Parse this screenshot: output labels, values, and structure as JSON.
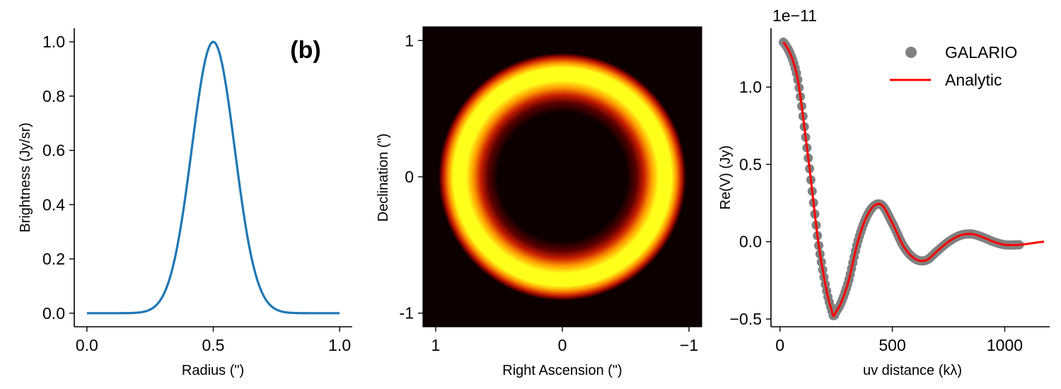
{
  "panel_tag": "(b)",
  "colors": {
    "profile_line": "#1f77b4",
    "galario_points": "#808080",
    "analytic_line": "#ff0000",
    "image_background": "#0d0000",
    "colormap": "afmhot"
  },
  "chart_data": [
    {
      "type": "line",
      "panel": "left",
      "title": "",
      "xlabel": "Radius (\")",
      "ylabel": "Brightness (Jy/sr)",
      "xlim": [
        -0.05,
        1.05
      ],
      "ylim": [
        -0.05,
        1.05
      ],
      "xticks": [
        0.0,
        0.5,
        1.0
      ],
      "xtick_labels": [
        "0.0",
        "0.5",
        "1.0"
      ],
      "yticks": [
        0.0,
        0.2,
        0.4,
        0.6,
        0.8,
        1.0
      ],
      "ytick_labels": [
        "0.0",
        "0.2",
        "0.4",
        "0.6",
        "0.8",
        "1.0"
      ],
      "grid": false,
      "series": [
        {
          "profile": "gaussian",
          "center": 0.5,
          "sigma": 0.085,
          "peak": 1.0,
          "x_range": [
            0.0,
            1.0
          ]
        }
      ]
    },
    {
      "type": "heatmap",
      "panel": "middle",
      "title": "",
      "xlabel": "Right Ascension (\")",
      "ylabel": "Declination (\")",
      "xlim": [
        1.1,
        -1.1
      ],
      "ylim": [
        -1.1,
        1.1
      ],
      "xticks": [
        1,
        0,
        -1
      ],
      "xtick_labels": [
        "1",
        "0",
        "−1"
      ],
      "yticks": [
        1,
        0,
        -1
      ],
      "ytick_labels": [
        "1",
        "0",
        "-1"
      ],
      "ring": {
        "center": [
          0.0,
          0.0
        ],
        "radius": 0.5,
        "width_sigma": 0.085
      }
    },
    {
      "type": "scatter",
      "panel": "right",
      "title": "",
      "xlabel": "uv distance (kλ)",
      "ylabel": "Re(V) (Jy)",
      "y_offset_label": "1e−11",
      "xlim": [
        -40,
        1200
      ],
      "ylim": [
        -0.55,
        1.38
      ],
      "xticks": [
        0,
        500,
        1000
      ],
      "xtick_labels": [
        "0",
        "500",
        "1000"
      ],
      "yticks": [
        -0.5,
        0.0,
        0.5,
        1.0
      ],
      "ytick_labels": [
        "−0.5",
        "0.0",
        "0.5",
        "1.0"
      ],
      "legend_position": "top-right",
      "legend": [
        "GALARIO",
        "Analytic"
      ],
      "series": [
        {
          "name": "GALARIO",
          "style": "markers",
          "x_range": [
            15,
            1065
          ],
          "x": [
            15,
            75,
            125,
            175,
            230,
            250,
            300,
            350,
            400,
            450,
            500,
            550,
            600,
            650,
            700,
            750,
            800,
            850,
            900,
            950,
            1000,
            1065
          ],
          "y": [
            1.29,
            1.08,
            0.55,
            -0.05,
            -0.44,
            -0.45,
            -0.28,
            0.02,
            0.2,
            0.24,
            0.12,
            -0.03,
            -0.11,
            -0.12,
            -0.06,
            0.0,
            0.04,
            0.05,
            0.03,
            0.0,
            -0.02,
            -0.02
          ]
        },
        {
          "name": "Analytic",
          "style": "line",
          "x_range": [
            15,
            1175
          ],
          "x": [
            15,
            75,
            125,
            175,
            230,
            250,
            300,
            350,
            400,
            450,
            500,
            550,
            600,
            650,
            700,
            750,
            800,
            850,
            900,
            950,
            1000,
            1065,
            1120,
            1175
          ],
          "y": [
            1.29,
            1.08,
            0.55,
            -0.05,
            -0.44,
            -0.45,
            -0.28,
            0.02,
            0.2,
            0.24,
            0.12,
            -0.03,
            -0.11,
            -0.12,
            -0.06,
            0.0,
            0.04,
            0.05,
            0.03,
            0.0,
            -0.02,
            -0.02,
            -0.01,
            0.0
          ]
        }
      ]
    }
  ]
}
